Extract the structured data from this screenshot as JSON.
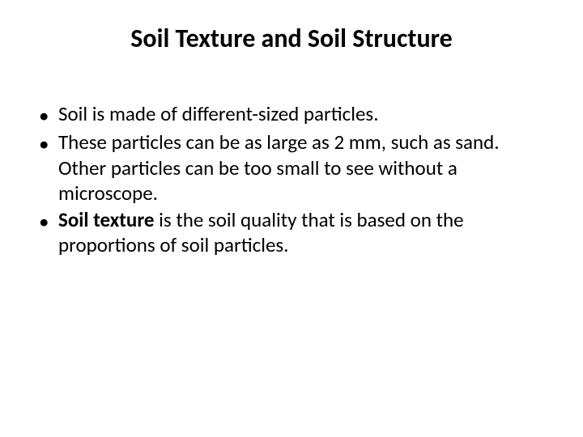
{
  "slide": {
    "title": "Soil Texture and Soil Structure",
    "title_fontsize": 32,
    "title_weight": "bold",
    "body_fontsize": 25,
    "background_color": "#ffffff",
    "text_color": "#000000",
    "bullets": [
      {
        "text": "Soil is made of different-sized particles.",
        "bold_prefix": ""
      },
      {
        "text": "These particles can be as large as 2 mm, such as sand. Other particles can be too small to see without a microscope.",
        "bold_prefix": ""
      },
      {
        "text": " is the soil quality that is based on the proportions of soil particles.",
        "bold_prefix": "Soil texture"
      }
    ],
    "bullet_marker": "•"
  }
}
